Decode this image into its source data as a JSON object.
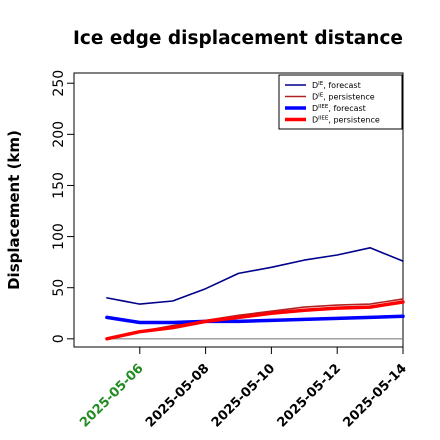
{
  "chart_data": {
    "type": "line",
    "title": "Ice edge displacement distance",
    "ylabel": "Displacement (km)",
    "xlabel": "",
    "x": [
      "2025-05-05",
      "2025-05-06",
      "2025-05-07",
      "2025-05-08",
      "2025-05-09",
      "2025-05-10",
      "2025-05-11",
      "2025-05-12",
      "2025-05-13",
      "2025-05-14"
    ],
    "xticks": [
      "2025-05-06",
      "2025-05-08",
      "2025-05-10",
      "2025-05-12",
      "2025-05-14"
    ],
    "highlight_tick": "2025-05-06",
    "yticks": [
      0,
      50,
      100,
      150,
      200,
      250
    ],
    "ylim": [
      -8,
      260
    ],
    "xlim": [
      "2025-05-04",
      "2025-05-14"
    ],
    "legend_position": "top-right",
    "reference_line": 0,
    "series": [
      {
        "name_main": "D",
        "name_sup": "IE",
        "name_rest": ", forecast",
        "color": "#00008b",
        "width": 1.6,
        "values": [
          40,
          34,
          37,
          49,
          64,
          70,
          77,
          82,
          89,
          76
        ]
      },
      {
        "name_main": "D",
        "name_sup": "IE",
        "name_rest": ", persistence",
        "color": "#b22222",
        "width": 1.6,
        "values": [
          0,
          7,
          13,
          18,
          23,
          27,
          31,
          33,
          34,
          39
        ]
      },
      {
        "name_main": "D",
        "name_sup": "IIEE",
        "name_rest": ", forecast",
        "color": "#0000ff",
        "width": 3.5,
        "values": [
          21,
          16,
          16,
          17,
          17,
          18,
          19,
          20,
          21,
          22
        ]
      },
      {
        "name_main": "D",
        "name_sup": "IIEE",
        "name_rest": ", persistence",
        "color": "#ff0000",
        "width": 3.5,
        "values": [
          0,
          7,
          11,
          17,
          21,
          25,
          28,
          30,
          31,
          36
        ]
      }
    ],
    "colors": {
      "highlight_tick": "#228b22",
      "tick": "#000000",
      "zero_line": "#808080"
    }
  }
}
